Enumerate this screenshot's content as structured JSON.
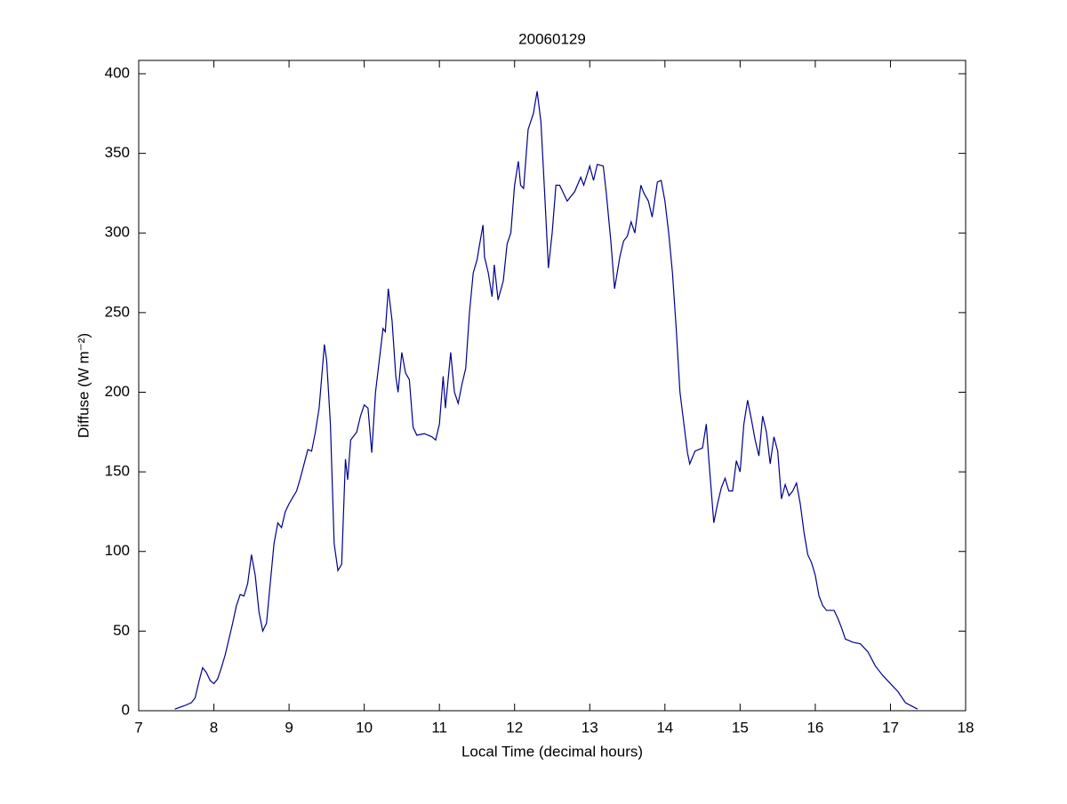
{
  "chart_data": {
    "type": "line",
    "title": "20060129",
    "xlabel": "Local Time (decimal hours)",
    "ylabel": "Diffuse (W m⁻²)",
    "xlim": [
      7,
      18
    ],
    "xticks": [
      7,
      8,
      9,
      10,
      11,
      12,
      13,
      14,
      15,
      16,
      17,
      18
    ],
    "ylim": [
      0,
      400
    ],
    "yticks": [
      0,
      50,
      100,
      150,
      200,
      250,
      300,
      350,
      400
    ],
    "x": [
      7.48,
      7.6,
      7.7,
      7.75,
      7.8,
      7.85,
      7.9,
      7.95,
      8.0,
      8.05,
      8.1,
      8.15,
      8.2,
      8.25,
      8.3,
      8.35,
      8.4,
      8.45,
      8.5,
      8.55,
      8.6,
      8.65,
      8.7,
      8.75,
      8.8,
      8.85,
      8.9,
      8.95,
      9.0,
      9.05,
      9.1,
      9.15,
      9.2,
      9.25,
      9.3,
      9.35,
      9.4,
      9.47,
      9.5,
      9.55,
      9.6,
      9.65,
      9.7,
      9.75,
      9.78,
      9.82,
      9.9,
      9.95,
      10.0,
      10.05,
      10.1,
      10.15,
      10.2,
      10.25,
      10.28,
      10.32,
      10.37,
      10.42,
      10.45,
      10.5,
      10.55,
      10.6,
      10.65,
      10.7,
      10.8,
      10.9,
      10.95,
      11.0,
      11.05,
      11.08,
      11.1,
      11.15,
      11.2,
      11.25,
      11.3,
      11.35,
      11.4,
      11.45,
      11.5,
      11.55,
      11.58,
      11.6,
      11.65,
      11.7,
      11.73,
      11.78,
      11.85,
      11.9,
      11.95,
      12.0,
      12.05,
      12.08,
      12.12,
      12.18,
      12.25,
      12.3,
      12.35,
      12.4,
      12.45,
      12.5,
      12.55,
      12.6,
      12.7,
      12.8,
      12.88,
      12.92,
      13.0,
      13.05,
      13.1,
      13.18,
      13.22,
      13.28,
      13.33,
      13.4,
      13.45,
      13.5,
      13.55,
      13.6,
      13.68,
      13.72,
      13.78,
      13.83,
      13.9,
      13.95,
      14.0,
      14.05,
      14.1,
      14.15,
      14.2,
      14.3,
      14.33,
      14.4,
      14.5,
      14.55,
      14.58,
      14.65,
      14.7,
      14.75,
      14.8,
      14.85,
      14.9,
      14.95,
      15.0,
      15.05,
      15.1,
      15.15,
      15.2,
      15.25,
      15.3,
      15.35,
      15.4,
      15.45,
      15.5,
      15.55,
      15.6,
      15.65,
      15.7,
      15.75,
      15.8,
      15.85,
      15.9,
      15.95,
      16.0,
      16.05,
      16.1,
      16.15,
      16.25,
      16.3,
      16.35,
      16.4,
      16.5,
      16.6,
      16.7,
      16.8,
      16.9,
      17.0,
      17.1,
      17.2,
      17.36
    ],
    "series": [
      {
        "color": "#00008b",
        "values": [
          1,
          3,
          5,
          8,
          18,
          27,
          24,
          19,
          17,
          20,
          27,
          35,
          45,
          55,
          66,
          73,
          72,
          80,
          98,
          85,
          62,
          50,
          55,
          80,
          105,
          118,
          115,
          125,
          130,
          134,
          138,
          146,
          155,
          164,
          163,
          175,
          190,
          230,
          220,
          180,
          105,
          88,
          92,
          158,
          145,
          170,
          175,
          185,
          192,
          190,
          162,
          200,
          220,
          240,
          238,
          265,
          245,
          210,
          200,
          225,
          212,
          208,
          178,
          173,
          174,
          172,
          170,
          180,
          210,
          190,
          200,
          225,
          200,
          193,
          205,
          215,
          250,
          275,
          283,
          297,
          305,
          285,
          275,
          260,
          280,
          258,
          270,
          293,
          300,
          330,
          345,
          330,
          328,
          365,
          375,
          389,
          370,
          325,
          278,
          300,
          330,
          330,
          320,
          326,
          335,
          330,
          342,
          333,
          343,
          342,
          325,
          295,
          265,
          285,
          295,
          298,
          307,
          300,
          330,
          325,
          320,
          310,
          332,
          333,
          320,
          300,
          275,
          240,
          200,
          162,
          155,
          163,
          165,
          180,
          160,
          118,
          130,
          140,
          146,
          138,
          138,
          157,
          150,
          180,
          195,
          183,
          170,
          160,
          185,
          175,
          155,
          172,
          163,
          133,
          142,
          135,
          138,
          143,
          130,
          112,
          98,
          93,
          85,
          72,
          66,
          63,
          63,
          58,
          52,
          45,
          43,
          42,
          37,
          28,
          22,
          17,
          12,
          5,
          1
        ]
      }
    ]
  }
}
